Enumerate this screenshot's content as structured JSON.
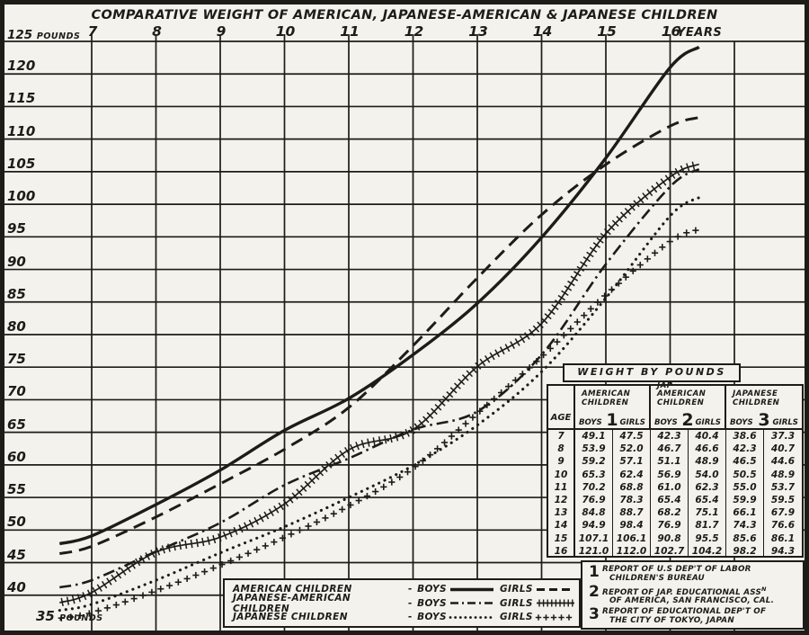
{
  "page": {
    "title": "COMPARATIVE WEIGHT OF AMERICAN, JAPANESE-AMERICAN & JAPANESE CHILDREN"
  },
  "axes": {
    "x_ticks": [
      "7",
      "8",
      "9",
      "10",
      "11",
      "12",
      "13",
      "14",
      "15",
      "16"
    ],
    "x_unit": "YEARS",
    "y_top": {
      "value": "125",
      "unit": "POUNDS"
    },
    "y_ticks": [
      "120",
      "115",
      "110",
      "105",
      "100",
      "95",
      "90",
      "85",
      "80",
      "75",
      "70",
      "65",
      "60",
      "55",
      "50",
      "45",
      "40"
    ],
    "y_bottom": {
      "value": "35",
      "unit": "POUNDS"
    }
  },
  "chart_data": {
    "type": "line",
    "title": "COMPARATIVE WEIGHT OF AMERICAN, JAPANESE-AMERICAN & JAPANESE CHILDREN",
    "x": [
      7,
      8,
      9,
      10,
      11,
      12,
      13,
      14,
      15,
      16
    ],
    "xlabel": "YEARS",
    "ylabel": "POUNDS",
    "xlim": [
      7,
      16
    ],
    "ylim": [
      35,
      125
    ],
    "grid": true,
    "legend_position": "bottom",
    "series": [
      {
        "name": "American children - boys",
        "style": "solid",
        "values": [
          49.1,
          53.9,
          59.2,
          65.3,
          70.2,
          76.9,
          84.8,
          94.9,
          107.1,
          121.0
        ]
      },
      {
        "name": "American children - girls",
        "style": "dashed",
        "values": [
          47.5,
          52.0,
          57.1,
          62.4,
          68.8,
          78.3,
          88.7,
          98.4,
          106.1,
          112.0
        ]
      },
      {
        "name": "Japanese-American children - boys",
        "style": "dashdot",
        "values": [
          42.3,
          46.7,
          51.1,
          56.9,
          61.0,
          65.4,
          68.2,
          76.9,
          90.8,
          102.7
        ]
      },
      {
        "name": "Japanese-American children - girls",
        "style": "hatched",
        "values": [
          40.4,
          46.6,
          48.9,
          54.0,
          62.3,
          65.4,
          75.1,
          81.7,
          95.5,
          104.2
        ]
      },
      {
        "name": "Japanese children - boys",
        "style": "dotted",
        "values": [
          38.6,
          42.3,
          46.5,
          50.5,
          55.0,
          59.9,
          66.1,
          74.3,
          85.6,
          98.2
        ]
      },
      {
        "name": "Japanese children - girls",
        "style": "plus",
        "values": [
          37.3,
          40.7,
          44.6,
          48.9,
          53.7,
          59.5,
          67.9,
          76.6,
          86.1,
          94.3
        ]
      }
    ]
  },
  "table": {
    "title": "WEIGHT BY POUNDS",
    "age_header": "AGE",
    "groups": [
      {
        "name_line1": "AMERICAN",
        "name_line2": "CHILDREN",
        "footnote_ref": "1",
        "sub": [
          "BOYS",
          "GIRLS"
        ]
      },
      {
        "name_line1": "JAP-AMERICAN",
        "name_line2": "CHILDREN",
        "footnote_ref": "2",
        "sub": [
          "BOYS",
          "GIRLS"
        ]
      },
      {
        "name_line1": "JAPANESE",
        "name_line2": "CHILDREN",
        "footnote_ref": "3",
        "sub": [
          "BOYS",
          "GIRLS"
        ]
      }
    ],
    "rows": [
      [
        "7",
        "49.1",
        "47.5",
        "42.3",
        "40.4",
        "38.6",
        "37.3"
      ],
      [
        "8",
        "53.9",
        "52.0",
        "46.7",
        "46.6",
        "42.3",
        "40.7"
      ],
      [
        "9",
        "59.2",
        "57.1",
        "51.1",
        "48.9",
        "46.5",
        "44.6"
      ],
      [
        "10",
        "65.3",
        "62.4",
        "56.9",
        "54.0",
        "50.5",
        "48.9"
      ],
      [
        "11",
        "70.2",
        "68.8",
        "61.0",
        "62.3",
        "55.0",
        "53.7"
      ],
      [
        "12",
        "76.9",
        "78.3",
        "65.4",
        "65.4",
        "59.9",
        "59.5"
      ],
      [
        "13",
        "84.8",
        "88.7",
        "68.2",
        "75.1",
        "66.1",
        "67.9"
      ],
      [
        "14",
        "94.9",
        "98.4",
        "76.9",
        "81.7",
        "74.3",
        "76.6"
      ],
      [
        "15",
        "107.1",
        "106.1",
        "90.8",
        "95.5",
        "85.6",
        "86.1"
      ],
      [
        "16",
        "121.0",
        "112.0",
        "102.7",
        "104.2",
        "98.2",
        "94.3"
      ]
    ]
  },
  "legend": {
    "rows": [
      {
        "label": "AMERICAN CHILDREN",
        "sep": "-",
        "boys_label": "BOYS",
        "boys_style": "solid",
        "girls_label": "GIRLS",
        "girls_style": "dashed"
      },
      {
        "label": "JAPANESE-AMERICAN CHILDREN",
        "sep": "-",
        "boys_label": "BOYS",
        "boys_style": "dashdot",
        "girls_label": "GIRLS",
        "girls_style": "hatched"
      },
      {
        "label": "JAPANESE CHILDREN",
        "sep": "-",
        "boys_label": "BOYS",
        "boys_style": "dotted",
        "girls_label": "GIRLS",
        "girls_style": "plus"
      }
    ]
  },
  "footnotes": [
    {
      "num": "1",
      "line1": "REPORT OF U.S DEP'T OF LABOR",
      "sup": "",
      "line2": "CHILDREN'S BUREAU"
    },
    {
      "num": "2",
      "line1": "REPORT OF JAP. EDUCATIONAL ASS",
      "sup": "N",
      "line2": "OF AMERICA, SAN FRANCISCO, CAL."
    },
    {
      "num": "3",
      "line1": "REPORT OF EDUCATIONAL DEP'T OF",
      "sup": "",
      "line2": "THE CITY OF TOKYO, JAPAN"
    }
  ],
  "colors": {
    "ink": "#1d1c19",
    "paper": "#f4f2ec"
  }
}
